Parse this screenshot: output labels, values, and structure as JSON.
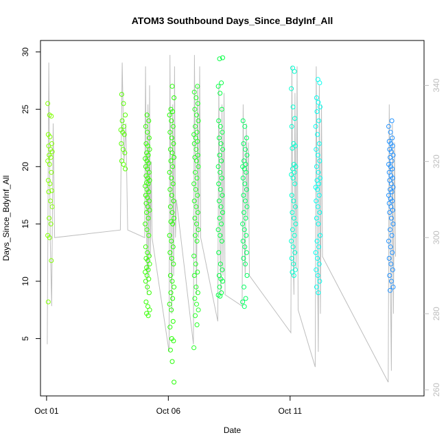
{
  "chart_data": {
    "type": "scatter",
    "title": "ATOM3 Southbound Days_Since_BdyInf_All",
    "xlabel": "Date",
    "ylabel": "Days_Since_BdyInf_All",
    "x_ticks": [
      "Oct 01",
      "Oct 06",
      "Oct 11"
    ],
    "y_ticks": [
      5,
      10,
      15,
      20,
      25,
      30
    ],
    "y2_ticks": [
      260,
      280,
      300,
      320,
      340
    ],
    "xlim": [
      "Sep 30 18:00",
      "Oct 16 12:00"
    ],
    "ylim": [
      0,
      31
    ],
    "y2lim": [
      258.4,
      351.8
    ],
    "grid": false,
    "secondary_axis_color": "#bdbdbd",
    "line_color": "#bdbdbd",
    "series": [
      {
        "date": "Oct 01",
        "color": "#80ff00",
        "y": [
          25.5,
          24.5,
          24.4,
          22.8,
          22.6,
          22.0,
          21.8,
          21.5,
          21.3,
          21.0,
          20.8,
          20.5,
          20.2,
          19.5,
          18.8,
          18.5,
          17.9,
          17.8,
          17.0,
          16.5,
          15.5,
          15.0,
          14.0,
          13.8,
          11.8,
          8.2
        ],
        "line_y2": [
          272,
          346,
          300,
          282,
          330,
          300
        ]
      },
      {
        "date": "Oct 04",
        "color": "#55ff00",
        "y": [
          26.3,
          25.5,
          24.5,
          24.0,
          23.5,
          23.2,
          23.0,
          22.8,
          22.0,
          21.5,
          21.2,
          20.5,
          20.2,
          19.8
        ],
        "line_y2": [
          302,
          346,
          320,
          330,
          302
        ]
      },
      {
        "date": "Oct 05",
        "color": "#33ff00",
        "y": [
          24.5,
          24.0,
          23.5,
          23.0,
          22.5,
          22.0,
          21.8,
          21.5,
          21.2,
          21.0,
          20.7,
          20.5,
          20.3,
          20.0,
          19.8,
          19.5,
          19.2,
          19.0,
          18.8,
          18.6,
          18.5,
          18.3,
          18.0,
          17.8,
          17.5,
          17.3,
          17.0,
          16.8,
          16.5,
          16.2,
          16.0,
          15.5,
          15.0,
          14.5,
          14.0,
          13.0,
          12.5,
          12.2,
          12.0,
          11.8,
          11.5,
          11.2,
          11.0,
          10.8,
          10.5,
          10.2,
          10.0,
          9.5,
          9.0,
          8.2,
          7.8,
          7.5,
          7.2,
          7.0
        ],
        "line_y2": [
          300,
          345,
          315,
          285,
          335,
          290,
          340,
          295,
          320,
          300
        ]
      },
      {
        "date": "Oct 06",
        "color": "#22ff00",
        "y": [
          27.0,
          26.0,
          25.0,
          24.8,
          24.5,
          24.0,
          23.5,
          23.0,
          22.5,
          22.0,
          21.5,
          21.2,
          20.8,
          20.5,
          20.0,
          19.5,
          19.0,
          18.5,
          18.0,
          17.5,
          17.0,
          16.5,
          16.0,
          15.5,
          15.2,
          15.0,
          14.0,
          13.5,
          13.0,
          12.5,
          12.0,
          11.5,
          10.5,
          10.0,
          9.5,
          9.0,
          8.5,
          8.0,
          7.5,
          6.5,
          6.0,
          5.0,
          4.8,
          4.0,
          3.0,
          1.2
        ],
        "line_y2": [
          270,
          348,
          300,
          280,
          335,
          290,
          345,
          300,
          310
        ]
      },
      {
        "date": "Oct 07",
        "color": "#22ff22",
        "y": [
          27.0,
          26.5,
          26.0,
          25.5,
          25.0,
          24.5,
          24.0,
          23.5,
          23.0,
          22.8,
          22.5,
          22.2,
          22.0,
          21.5,
          21.0,
          20.8,
          20.5,
          20.0,
          19.5,
          19.0,
          18.5,
          18.0,
          17.5,
          17.0,
          16.5,
          16.0,
          15.5,
          15.0,
          14.5,
          14.0,
          13.5,
          12.2,
          11.5,
          10.8,
          10.5,
          9.5,
          9.0,
          8.5,
          8.0,
          7.5,
          7.0,
          6.2,
          4.2
        ],
        "line_y2": [
          272,
          348,
          310,
          285,
          340,
          300,
          345,
          300
        ]
      },
      {
        "date": "Oct 08",
        "color": "#00ff40",
        "y": [
          29.5,
          29.4,
          27.3,
          27.0,
          26.4,
          25.0,
          24.0,
          23.5,
          23.0,
          22.5,
          22.0,
          21.5,
          21.0,
          20.5,
          20.0,
          19.5,
          19.0,
          18.5,
          18.0,
          17.5,
          17.0,
          16.5,
          16.0,
          15.5,
          15.0,
          14.5,
          14.0,
          13.5,
          12.5,
          11.5,
          11.0,
          10.5,
          10.2,
          10.0,
          9.5,
          9.0,
          8.8,
          8.7
        ],
        "line_y2": [
          278,
          340,
          300,
          285,
          335,
          290,
          338,
          285
        ]
      },
      {
        "date": "Oct 09",
        "color": "#00ff60",
        "y": [
          24.0,
          23.5,
          22.5,
          22.0,
          21.5,
          21.0,
          20.5,
          20.2,
          20.0,
          19.8,
          19.5,
          19.0,
          18.5,
          18.0,
          17.5,
          17.0,
          16.5,
          16.0,
          15.5,
          15.0,
          14.5,
          14.0,
          13.5,
          13.0,
          12.5,
          12.0,
          11.5,
          10.5,
          9.5,
          8.5,
          8.2,
          7.8
        ],
        "line_y2": [
          282,
          335,
          300,
          290,
          330,
          305,
          325,
          290
        ]
      },
      {
        "date": "Oct 11",
        "color": "#00ffd0",
        "y": [
          28.6,
          28.3,
          26.8,
          25.2,
          24.2,
          23.5,
          22.0,
          21.8,
          21.6,
          20.2,
          20.0,
          19.8,
          19.5,
          19.3,
          19.0,
          18.5,
          17.5,
          17.0,
          16.5,
          16.0,
          15.5,
          15.0,
          14.5,
          14.0,
          13.5,
          13.0,
          12.5,
          12.0,
          11.5,
          11.0,
          10.8,
          10.5
        ],
        "line_y2": [
          275,
          345,
          300,
          285,
          338,
          292,
          345,
          281
        ]
      },
      {
        "date": "Oct 12",
        "color": "#00fff0",
        "y": [
          27.6,
          27.3,
          26.0,
          25.6,
          25.2,
          24.8,
          24.0,
          23.5,
          22.8,
          22.0,
          21.5,
          21.0,
          20.5,
          20.0,
          19.5,
          19.0,
          18.8,
          18.5,
          18.2,
          18.0,
          17.5,
          17.0,
          16.5,
          16.0,
          15.5,
          15.0,
          14.0,
          13.5,
          13.0,
          12.5,
          12.0,
          11.5,
          11.0,
          10.5,
          10.0,
          9.5,
          9.0
        ],
        "line_y2": [
          266,
          345,
          300,
          270,
          340,
          280,
          335,
          295
        ]
      },
      {
        "date": "Oct 15",
        "color": "#1e90ff",
        "y": [
          24.0,
          23.5,
          23.0,
          22.5,
          22.2,
          22.0,
          21.8,
          21.5,
          21.3,
          21.0,
          20.8,
          20.5,
          20.2,
          20.0,
          19.8,
          19.5,
          19.2,
          19.0,
          18.8,
          18.5,
          18.2,
          18.0,
          17.8,
          17.5,
          17.2,
          17.0,
          16.8,
          16.5,
          16.2,
          16.0,
          15.5,
          15.0,
          14.5,
          14.0,
          13.5,
          13.0,
          12.5,
          12.0,
          11.5,
          11.0,
          10.5,
          10.0,
          9.5,
          9.2
        ],
        "line_y2": [
          262,
          335,
          290,
          265,
          330,
          280,
          325,
          295
        ]
      }
    ]
  }
}
